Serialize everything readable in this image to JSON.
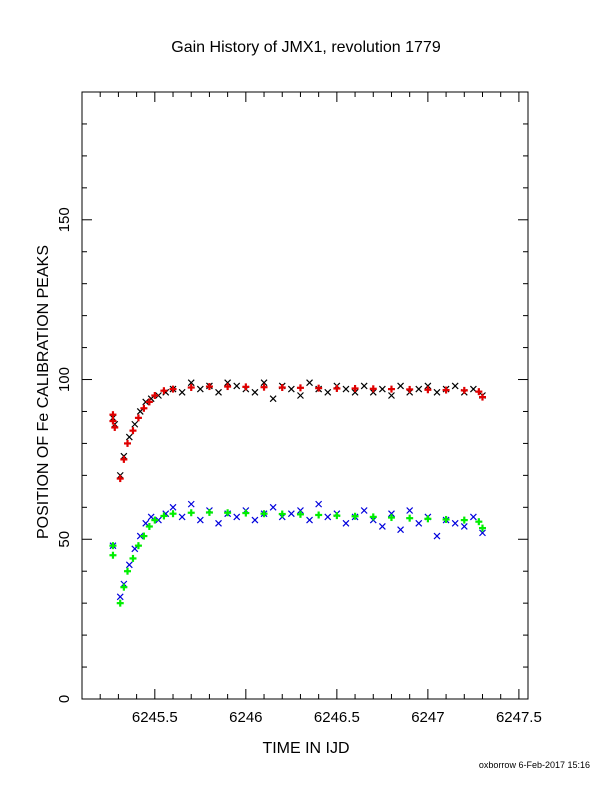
{
  "chart_data": {
    "type": "scatter",
    "title": "Gain History of JMX1, revolution 1779",
    "xlabel": "TIME IN IJD",
    "ylabel": "POSITION OF Fe CALIBRATION PEAKS",
    "xlim": [
      6245.1,
      6247.55
    ],
    "ylim": [
      0,
      190
    ],
    "xticks": [
      6245.5,
      6246,
      6246.5,
      6247,
      6247.5
    ],
    "xtick_labels": [
      "6245.5",
      "6246",
      "6246.5",
      "6247",
      "6247.5"
    ],
    "yticks": [
      0,
      50,
      100,
      150
    ],
    "ytick_labels": [
      "0",
      "50",
      "100",
      "150"
    ],
    "grid": false,
    "series": [
      {
        "marker": "x",
        "color": "#000000",
        "x": [
          6245.27,
          6245.28,
          6245.31,
          6245.33,
          6245.36,
          6245.39,
          6245.42,
          6245.45,
          6245.48,
          6245.52,
          6245.56,
          6245.6,
          6245.65,
          6245.7,
          6245.75,
          6245.8,
          6245.85,
          6245.9,
          6245.95,
          6246.0,
          6246.05,
          6246.1,
          6246.15,
          6246.2,
          6246.25,
          6246.3,
          6246.35,
          6246.4,
          6246.45,
          6246.5,
          6246.55,
          6246.6,
          6246.65,
          6246.7,
          6246.75,
          6246.8,
          6246.85,
          6246.9,
          6246.95,
          6247.0,
          6247.05,
          6247.1,
          6247.15,
          6247.2,
          6247.25,
          6247.3
        ],
        "values": [
          88,
          86,
          70,
          76,
          82,
          86,
          90,
          93,
          94,
          95,
          96,
          97,
          96,
          99,
          97,
          98,
          96,
          99,
          98,
          97,
          96,
          99,
          94,
          98,
          97,
          95,
          99,
          97,
          96,
          98,
          97,
          96,
          98,
          96,
          97,
          95,
          98,
          96,
          97,
          98,
          96,
          97,
          98,
          96,
          97,
          95
        ]
      },
      {
        "marker": "+",
        "color": "#e00000",
        "x": [
          6245.27,
          6245.27,
          6245.28,
          6245.31,
          6245.33,
          6245.35,
          6245.38,
          6245.41,
          6245.44,
          6245.47,
          6245.5,
          6245.55,
          6245.6,
          6245.7,
          6245.8,
          6245.9,
          6246.0,
          6246.1,
          6246.2,
          6246.3,
          6246.4,
          6246.5,
          6246.6,
          6246.7,
          6246.8,
          6246.9,
          6247.0,
          6247.1,
          6247.2,
          6247.28,
          6247.3
        ],
        "values": [
          89,
          87,
          85,
          69,
          75,
          80,
          84,
          88,
          91,
          93,
          95,
          96.5,
          97,
          97.5,
          97.8,
          97.8,
          97.7,
          97.6,
          97.5,
          97.4,
          97.3,
          97.2,
          97.2,
          97.1,
          97,
          96.9,
          96.8,
          96.7,
          96.6,
          96.2,
          94.5
        ]
      },
      {
        "marker": "x",
        "color": "#0000dd",
        "x": [
          6245.27,
          6245.31,
          6245.33,
          6245.36,
          6245.39,
          6245.42,
          6245.45,
          6245.48,
          6245.52,
          6245.56,
          6245.6,
          6245.65,
          6245.7,
          6245.75,
          6245.8,
          6245.85,
          6245.9,
          6245.95,
          6246.0,
          6246.05,
          6246.1,
          6246.15,
          6246.2,
          6246.25,
          6246.3,
          6246.35,
          6246.4,
          6246.45,
          6246.5,
          6246.55,
          6246.6,
          6246.65,
          6246.7,
          6246.75,
          6246.8,
          6246.85,
          6246.9,
          6246.95,
          6247.0,
          6247.05,
          6247.1,
          6247.15,
          6247.2,
          6247.25,
          6247.3
        ],
        "values": [
          48,
          32,
          36,
          42,
          47,
          51,
          55,
          57,
          56,
          58,
          60,
          57,
          61,
          56,
          59,
          55,
          58,
          57,
          59,
          56,
          58,
          60,
          57,
          58,
          59,
          56,
          61,
          57,
          58,
          55,
          57,
          59,
          56,
          54,
          58,
          53,
          59,
          55,
          57,
          51,
          56,
          55,
          54,
          57,
          52
        ]
      },
      {
        "marker": "+",
        "color": "#00ee00",
        "x": [
          6245.27,
          6245.27,
          6245.31,
          6245.33,
          6245.35,
          6245.38,
          6245.41,
          6245.44,
          6245.47,
          6245.5,
          6245.55,
          6245.6,
          6245.7,
          6245.8,
          6245.9,
          6246.0,
          6246.1,
          6246.2,
          6246.3,
          6246.4,
          6246.5,
          6246.6,
          6246.7,
          6246.8,
          6246.9,
          6247.0,
          6247.1,
          6247.2,
          6247.28,
          6247.3
        ],
        "values": [
          48,
          45,
          30,
          35,
          40,
          44,
          48,
          51,
          54,
          56,
          57.3,
          58,
          58.3,
          58.4,
          58.3,
          58.2,
          58,
          57.9,
          57.8,
          57.6,
          57.4,
          57.2,
          57,
          56.8,
          56.6,
          56.4,
          56.2,
          56,
          55.5,
          53.5
        ]
      }
    ]
  },
  "footer_text": "oxborrow  6-Feb-2017 15:16"
}
